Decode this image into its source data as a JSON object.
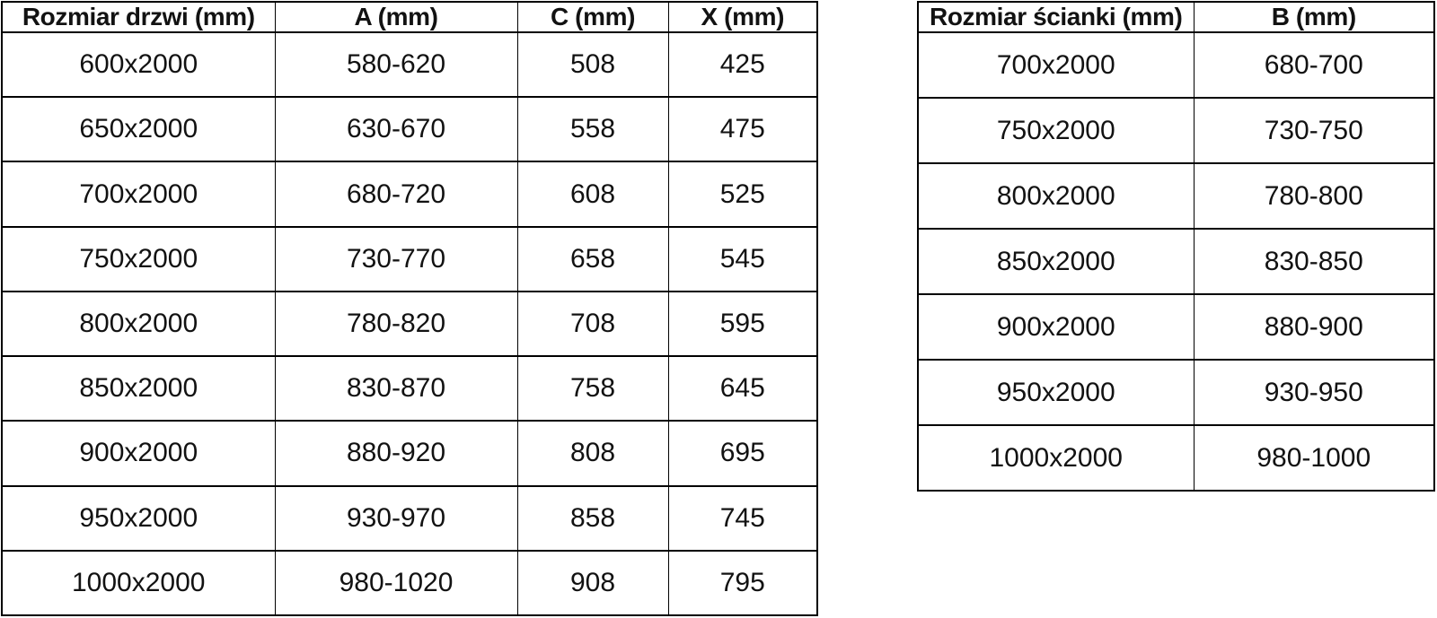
{
  "page": {
    "description": "Size specification tables for shower doors and wall panels",
    "background": "#ffffff"
  },
  "colors": {
    "border": "#000000",
    "text": "#121212",
    "background": "#ffffff"
  },
  "tables": [
    {
      "id": "door-sizes",
      "headers": [
        "Rozmiar drzwi (mm)",
        "A (mm)",
        "C (mm)",
        "X (mm)"
      ],
      "rows": [
        [
          "600x2000",
          "580-620",
          "508",
          "425"
        ],
        [
          "650x2000",
          "630-670",
          "558",
          "475"
        ],
        [
          "700x2000",
          "680-720",
          "608",
          "525"
        ],
        [
          "750x2000",
          "730-770",
          "658",
          "545"
        ],
        [
          "800x2000",
          "780-820",
          "708",
          "595"
        ],
        [
          "850x2000",
          "830-870",
          "758",
          "645"
        ],
        [
          "900x2000",
          "880-920",
          "808",
          "695"
        ],
        [
          "950x2000",
          "930-970",
          "858",
          "745"
        ],
        [
          "1000x2000",
          "980-1020",
          "908",
          "795"
        ]
      ]
    },
    {
      "id": "wall-panel-sizes",
      "headers": [
        "Rozmiar ścianki (mm)",
        "B (mm)"
      ],
      "rows": [
        [
          "700x2000",
          "680-700"
        ],
        [
          "750x2000",
          "730-750"
        ],
        [
          "800x2000",
          "780-800"
        ],
        [
          "850x2000",
          "830-850"
        ],
        [
          "900x2000",
          "880-900"
        ],
        [
          "950x2000",
          "930-950"
        ],
        [
          "1000x2000",
          "980-1000"
        ]
      ]
    }
  ]
}
